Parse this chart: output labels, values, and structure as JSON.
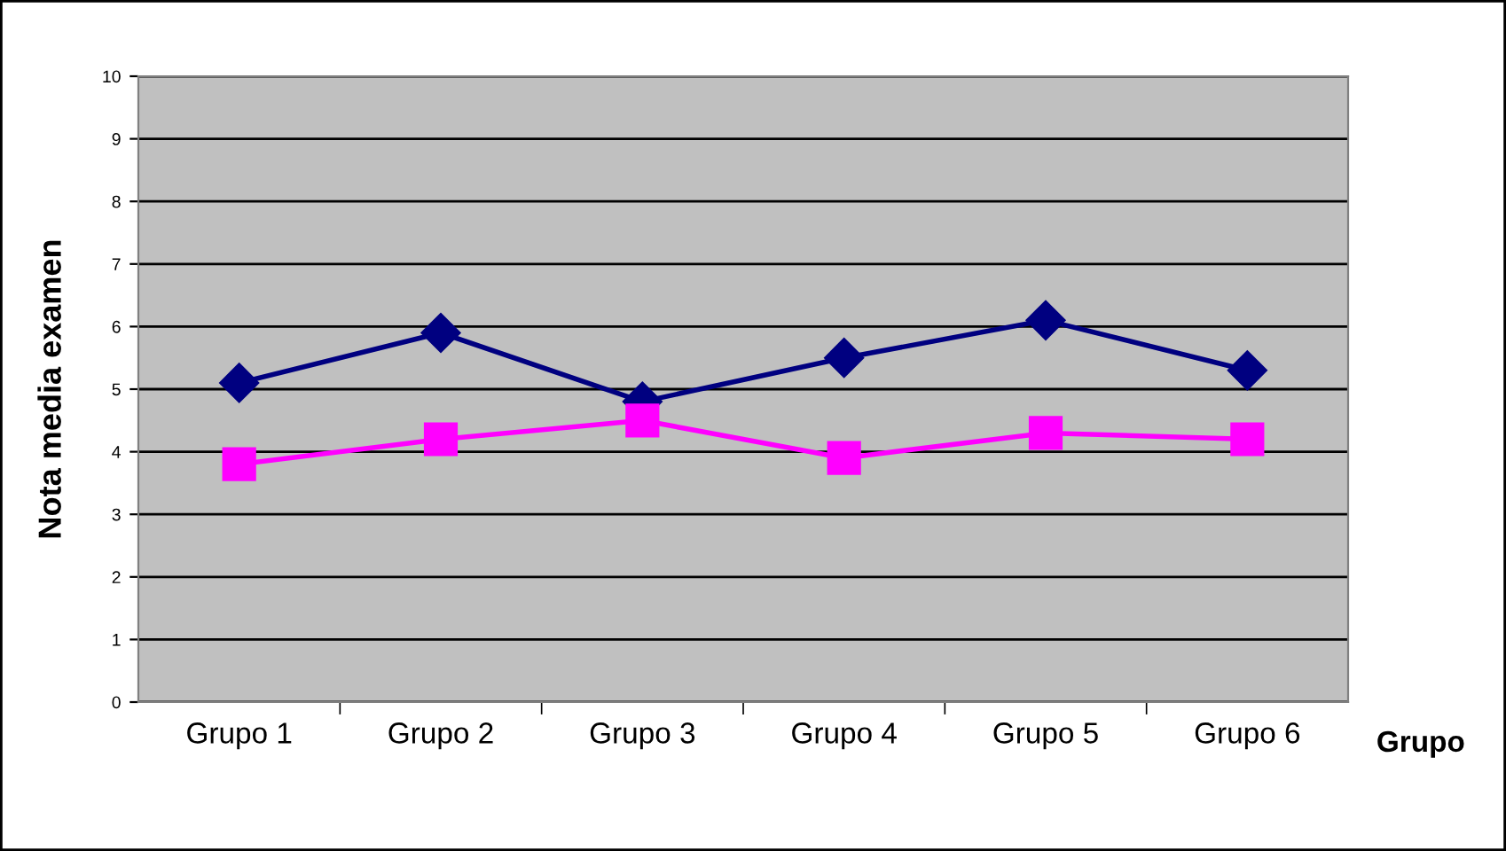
{
  "chart_data": {
    "type": "line",
    "xlabel": "Grupo",
    "ylabel": "Nota media examen",
    "categories": [
      "Grupo 1",
      "Grupo 2",
      "Grupo 3",
      "Grupo 4",
      "Grupo 5",
      "Grupo 6"
    ],
    "series": [
      {
        "color": "#000080",
        "marker": "diamond",
        "values": [
          5.1,
          5.9,
          4.8,
          5.5,
          6.1,
          5.3
        ]
      },
      {
        "color": "#ff00ff",
        "marker": "square",
        "values": [
          3.8,
          4.2,
          4.5,
          3.9,
          4.3,
          4.2
        ]
      }
    ],
    "ylim": [
      0,
      10
    ],
    "yticks": [
      0,
      1,
      2,
      3,
      4,
      5,
      6,
      7,
      8,
      9,
      10
    ],
    "grid": "y",
    "line_style": "solid"
  }
}
